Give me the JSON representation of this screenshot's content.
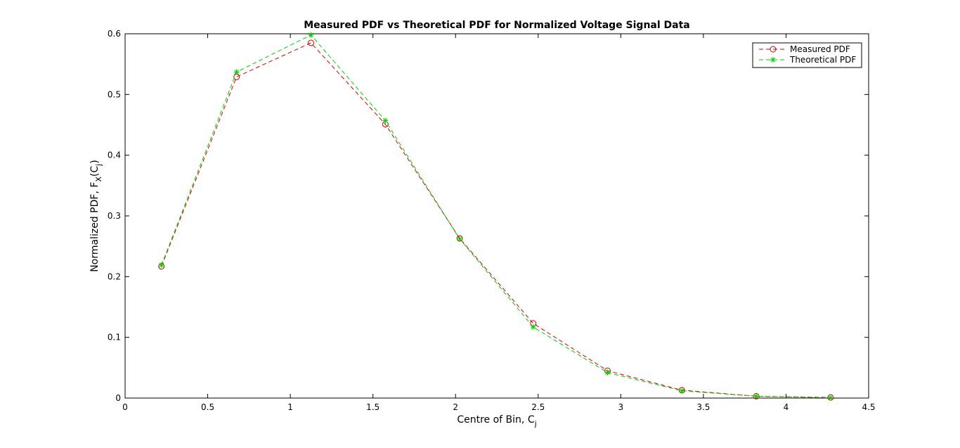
{
  "chart_data": {
    "type": "line",
    "title": "Measured PDF vs Theoretical PDF for Normalized Voltage Signal Data",
    "xlabel_main": "Centre of Bin, C",
    "xlabel_sub": "j",
    "ylabel_main": "Normalized PDF, F",
    "ylabel_sub1": "X",
    "ylabel_mid": "(C",
    "ylabel_sub2": "j",
    "ylabel_end": ")",
    "xlim": [
      0,
      4.5
    ],
    "ylim": [
      0,
      0.6
    ],
    "xticks": [
      "0",
      "0.5",
      "1",
      "1.5",
      "2",
      "2.5",
      "3",
      "3.5",
      "4",
      "4.5"
    ],
    "yticks": [
      "0",
      "0.1",
      "0.2",
      "0.3",
      "0.4",
      "0.5",
      "0.6"
    ],
    "grid": false,
    "legend_position": "top-right",
    "x": [
      0.22,
      0.675,
      1.125,
      1.575,
      2.025,
      2.47,
      2.92,
      3.37,
      3.82,
      4.27
    ],
    "series": [
      {
        "name": "Measured PDF",
        "color": "#cc0000",
        "marker": "circle",
        "line": "dashed",
        "values": [
          0.217,
          0.529,
          0.585,
          0.451,
          0.263,
          0.123,
          0.045,
          0.013,
          0.003,
          0.001
        ]
      },
      {
        "name": "Theoretical PDF",
        "color": "#00cc00",
        "marker": "asterisk",
        "line": "dashed",
        "values": [
          0.219,
          0.537,
          0.598,
          0.457,
          0.262,
          0.117,
          0.042,
          0.012,
          0.003,
          0.0005
        ]
      }
    ]
  }
}
